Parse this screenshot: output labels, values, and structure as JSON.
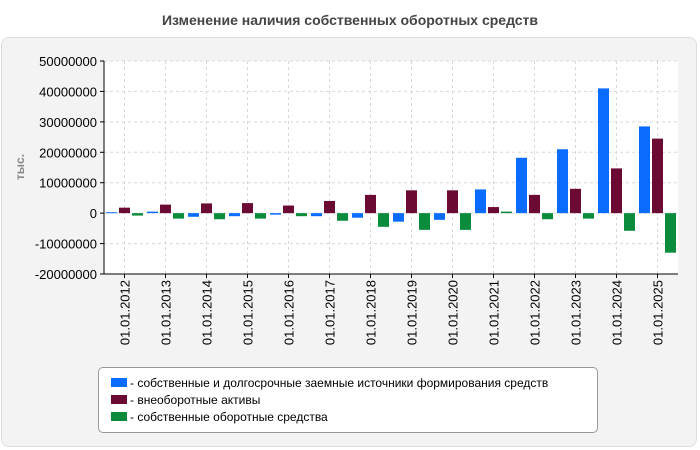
{
  "colors": {
    "s1": "#0a6cff",
    "s2": "#6b0a32",
    "s3": "#0a8c3c",
    "grid": "#d8d8d8",
    "axis": "#000000"
  },
  "chart_data": {
    "type": "bar",
    "title": "Изменение наличия собственных оборотных средств",
    "ylabel": "тыс.",
    "xlabel": "",
    "ylim": [
      -20000000,
      50000000
    ],
    "yticks": [
      -20000000,
      -10000000,
      0,
      10000000,
      20000000,
      30000000,
      40000000,
      50000000
    ],
    "ytick_labels": [
      "-20000000",
      "-10000000",
      "0",
      "10000000",
      "20000000",
      "30000000",
      "40000000",
      "50000000"
    ],
    "categories": [
      "01.01.2012",
      "01.01.2013",
      "01.01.2014",
      "01.01.2015",
      "01.01.2016",
      "01.01.2017",
      "01.01.2018",
      "01.01.2019",
      "01.01.2020",
      "01.01.2021",
      "01.01.2022",
      "01.01.2023",
      "01.01.2024",
      "01.01.2025"
    ],
    "series": [
      {
        "name": "собственные и долгосрочные заемные источники формирования средств",
        "legend_label": "- собственные и долгосрочные заемные источники формирования средств",
        "color": "#0a6cff",
        "values": [
          300000,
          500000,
          -1200000,
          -1000000,
          -500000,
          -1000000,
          -1500000,
          -2800000,
          -2200000,
          7800000,
          18200000,
          21000000,
          41000000,
          28500000
        ]
      },
      {
        "name": "внеоборотные активы",
        "legend_label": "- внеоборотные активы",
        "color": "#6b0a32",
        "values": [
          1800000,
          2800000,
          3200000,
          3300000,
          2500000,
          4000000,
          6000000,
          7500000,
          7500000,
          2000000,
          6000000,
          8000000,
          14700000,
          24500000
        ]
      },
      {
        "name": "собственные оборотные средства",
        "legend_label": "- собственные оборотные средства",
        "color": "#0a8c3c",
        "values": [
          -800000,
          -1800000,
          -2000000,
          -1800000,
          -1000000,
          -2500000,
          -4500000,
          -5500000,
          -5500000,
          500000,
          -2000000,
          -1800000,
          -5800000,
          -13000000
        ]
      }
    ]
  }
}
